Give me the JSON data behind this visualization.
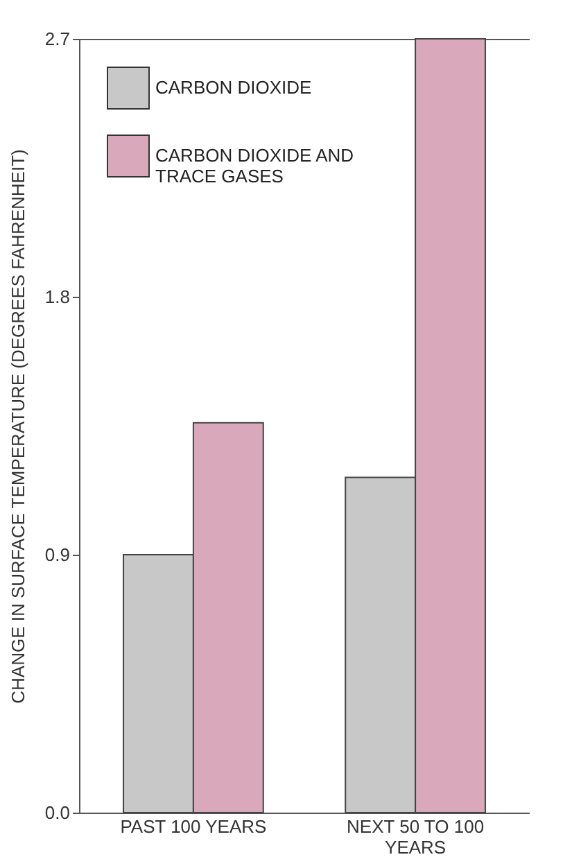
{
  "chart_data": {
    "type": "bar",
    "ylabel": "CHANGE IN SURFACE TEMPERATURE (DEGREES FAHRENHEIT)",
    "categories": [
      "PAST 100 YEARS",
      "NEXT 50 TO 100 YEARS"
    ],
    "series": [
      {
        "name": "CARBON DIOXIDE",
        "color": "#c8c8c8",
        "values": [
          0.9,
          1.17
        ]
      },
      {
        "name": "CARBON DIOXIDE AND TRACE GASES",
        "color": "#d9a9bb",
        "values": [
          1.36,
          2.7
        ]
      }
    ],
    "ylim": [
      0,
      2.7
    ],
    "yticks": [
      {
        "value": 0,
        "label": "0.0"
      },
      {
        "value": 0.9,
        "label": "0.9"
      },
      {
        "value": 1.8,
        "label": "1.8"
      },
      {
        "value": 2.7,
        "label": "2.7"
      }
    ],
    "grid": false,
    "legend": "top left"
  }
}
